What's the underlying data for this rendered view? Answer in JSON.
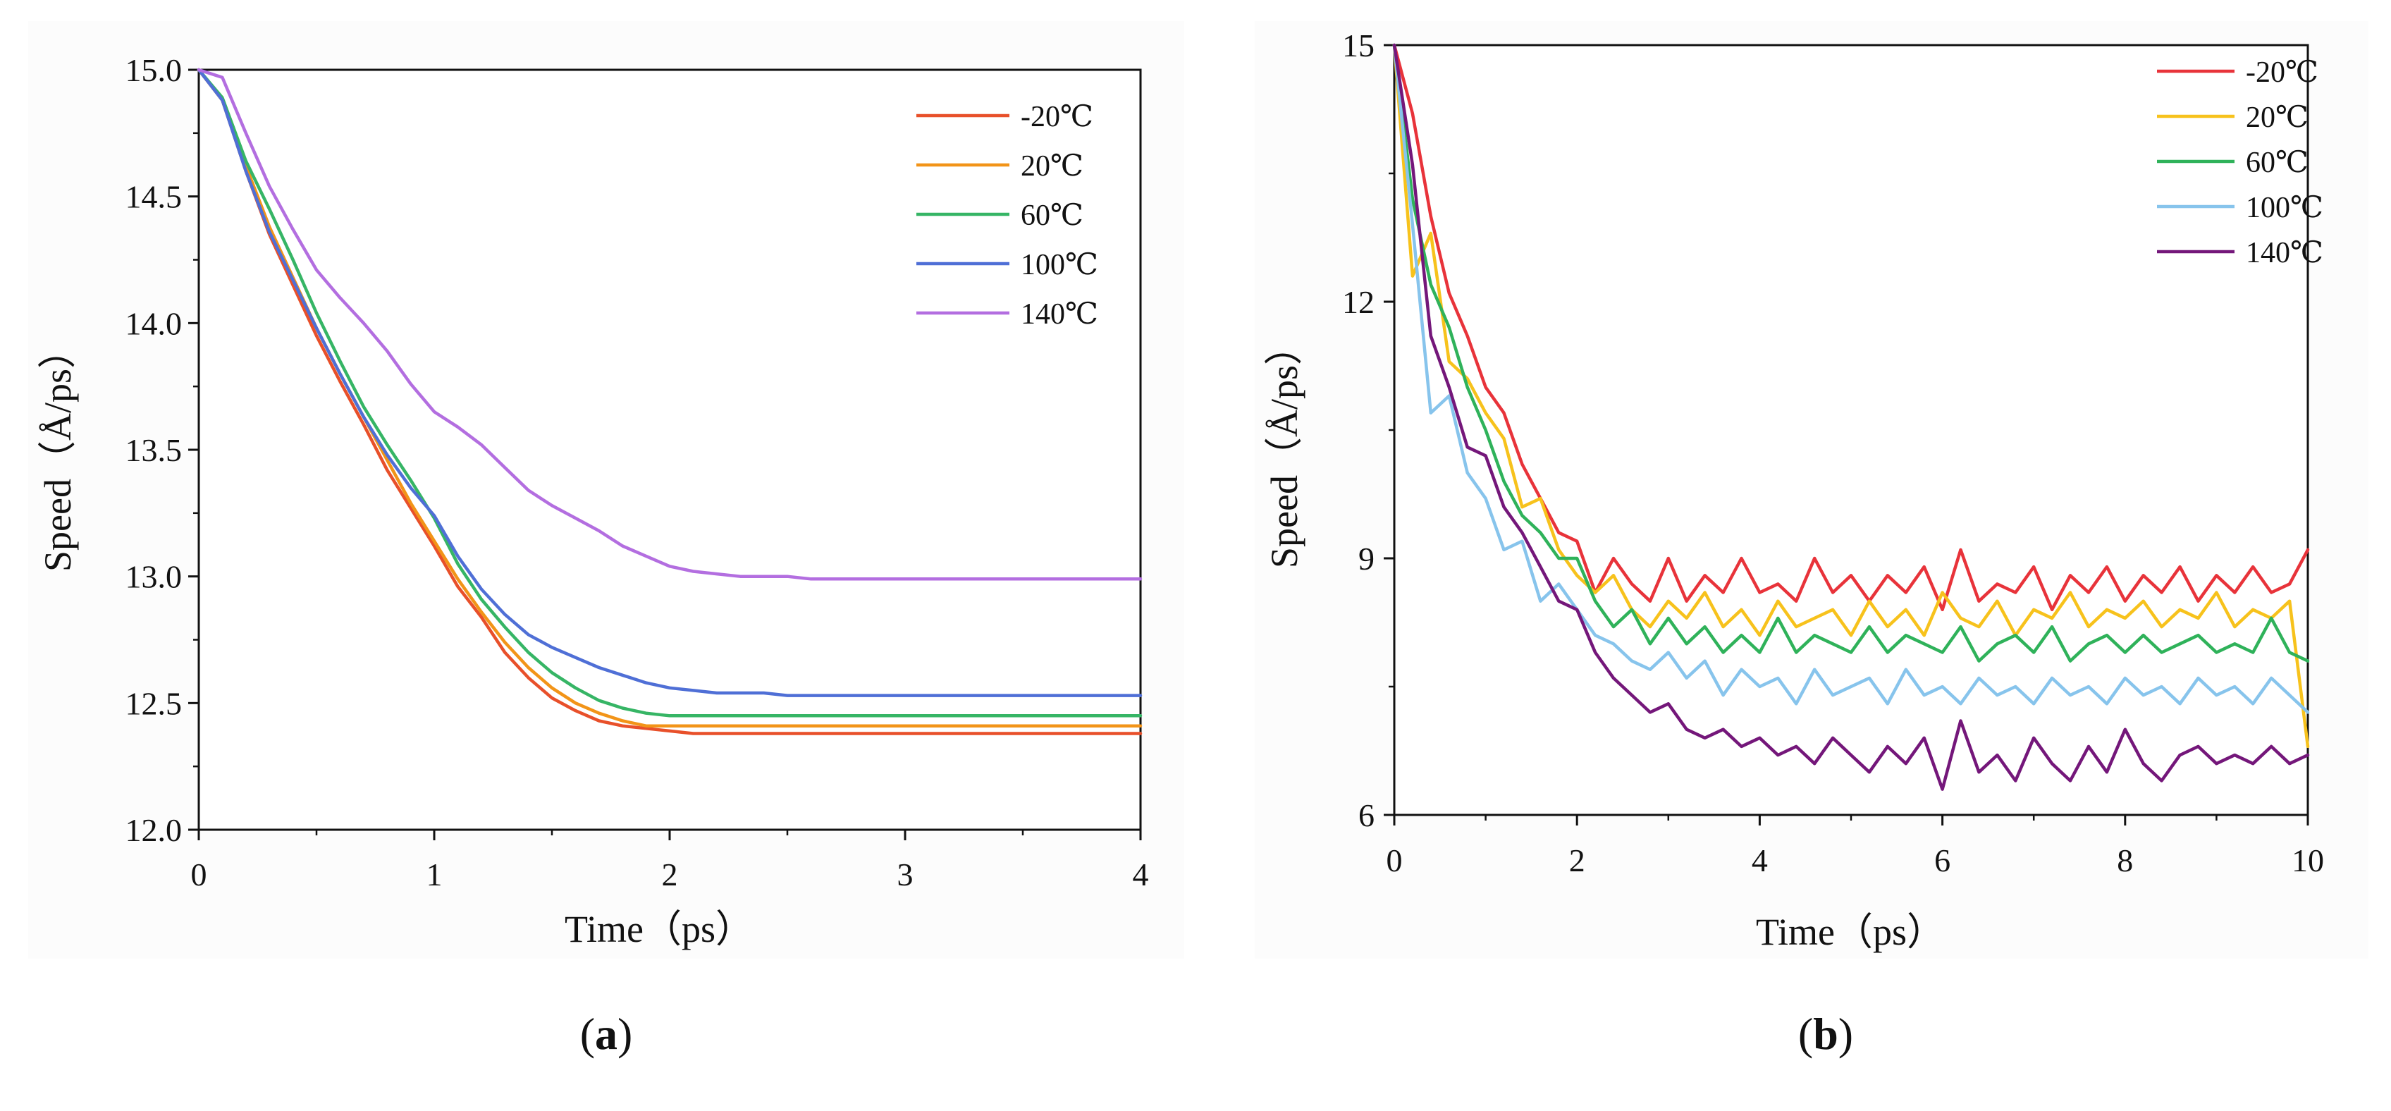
{
  "chart_data": [
    {
      "type": "line",
      "panel_label": "a",
      "title": "",
      "xlabel": "Time（ps）",
      "ylabel": "Speed（Å/ps）",
      "xlim": [
        0,
        4
      ],
      "ylim": [
        12.0,
        15.0
      ],
      "xticks": [
        0,
        1,
        2,
        3,
        4
      ],
      "yticks": [
        12.0,
        12.5,
        13.0,
        13.5,
        14.0,
        14.5,
        15.0
      ],
      "xtick_labels": [
        "0",
        "1",
        "2",
        "3",
        "4"
      ],
      "ytick_labels": [
        "12.0",
        "12.5",
        "13.0",
        "13.5",
        "14.0",
        "14.5",
        "15.0"
      ],
      "legend_position": "top-right",
      "grid": false,
      "x": [
        0,
        0.1,
        0.2,
        0.3,
        0.4,
        0.5,
        0.6,
        0.7,
        0.8,
        0.9,
        1.0,
        1.1,
        1.2,
        1.3,
        1.4,
        1.5,
        1.6,
        1.7,
        1.8,
        1.9,
        2.0,
        2.1,
        2.2,
        2.3,
        2.4,
        2.5,
        2.6,
        2.7,
        2.8,
        2.9,
        3.0,
        3.1,
        3.2,
        3.3,
        3.4,
        3.5,
        3.6,
        3.7,
        3.8,
        3.9,
        4.0
      ],
      "series": [
        {
          "name": "-20℃",
          "color": "#e8502a",
          "values": [
            15.0,
            14.88,
            14.6,
            14.35,
            14.15,
            13.95,
            13.77,
            13.6,
            13.42,
            13.27,
            13.12,
            12.96,
            12.84,
            12.7,
            12.6,
            12.52,
            12.47,
            12.43,
            12.41,
            12.4,
            12.39,
            12.38,
            12.38,
            12.38,
            12.38,
            12.38,
            12.38,
            12.38,
            12.38,
            12.38,
            12.38,
            12.38,
            12.38,
            12.38,
            12.38,
            12.38,
            12.38,
            12.38,
            12.38,
            12.38,
            12.38
          ]
        },
        {
          "name": "20℃",
          "color": "#f29418",
          "values": [
            15.0,
            14.88,
            14.62,
            14.38,
            14.18,
            13.98,
            13.8,
            13.63,
            13.46,
            13.29,
            13.14,
            12.99,
            12.86,
            12.74,
            12.64,
            12.56,
            12.5,
            12.46,
            12.43,
            12.41,
            12.41,
            12.41,
            12.41,
            12.41,
            12.41,
            12.41,
            12.41,
            12.41,
            12.41,
            12.41,
            12.41,
            12.41,
            12.41,
            12.41,
            12.41,
            12.41,
            12.41,
            12.41,
            12.41,
            12.41,
            12.41
          ]
        },
        {
          "name": "60℃",
          "color": "#36b565",
          "values": [
            15.0,
            14.89,
            14.64,
            14.45,
            14.25,
            14.04,
            13.85,
            13.67,
            13.52,
            13.38,
            13.23,
            13.05,
            12.91,
            12.8,
            12.7,
            12.62,
            12.56,
            12.51,
            12.48,
            12.46,
            12.45,
            12.45,
            12.45,
            12.45,
            12.45,
            12.45,
            12.45,
            12.45,
            12.45,
            12.45,
            12.45,
            12.45,
            12.45,
            12.45,
            12.45,
            12.45,
            12.45,
            12.45,
            12.45,
            12.45,
            12.45
          ]
        },
        {
          "name": "100℃",
          "color": "#4f6fd6",
          "values": [
            15.0,
            14.88,
            14.6,
            14.36,
            14.17,
            13.98,
            13.8,
            13.63,
            13.48,
            13.35,
            13.24,
            13.08,
            12.95,
            12.85,
            12.77,
            12.72,
            12.68,
            12.64,
            12.61,
            12.58,
            12.56,
            12.55,
            12.54,
            12.54,
            12.54,
            12.53,
            12.53,
            12.53,
            12.53,
            12.53,
            12.53,
            12.53,
            12.53,
            12.53,
            12.53,
            12.53,
            12.53,
            12.53,
            12.53,
            12.53,
            12.53
          ]
        },
        {
          "name": "140℃",
          "color": "#b36ee0",
          "values": [
            15.0,
            14.97,
            14.75,
            14.54,
            14.37,
            14.21,
            14.1,
            14.0,
            13.89,
            13.76,
            13.65,
            13.59,
            13.52,
            13.43,
            13.34,
            13.28,
            13.23,
            13.18,
            13.12,
            13.08,
            13.04,
            13.02,
            13.01,
            13.0,
            13.0,
            13.0,
            12.99,
            12.99,
            12.99,
            12.99,
            12.99,
            12.99,
            12.99,
            12.99,
            12.99,
            12.99,
            12.99,
            12.99,
            12.99,
            12.99,
            12.99
          ]
        }
      ]
    },
    {
      "type": "line",
      "panel_label": "b",
      "title": "",
      "xlabel": "Time（ps）",
      "ylabel": "Speed（Å/ps）",
      "xlim": [
        0,
        10
      ],
      "ylim": [
        6,
        15
      ],
      "xticks": [
        0,
        2,
        4,
        6,
        8,
        10
      ],
      "yticks": [
        6,
        9,
        12,
        15
      ],
      "xtick_labels": [
        "0",
        "2",
        "4",
        "6",
        "8",
        "10"
      ],
      "ytick_labels": [
        "6",
        "9",
        "12",
        "15"
      ],
      "legend_position": "top-right",
      "grid": false,
      "x": [
        0,
        0.2,
        0.4,
        0.6,
        0.8,
        1.0,
        1.2,
        1.4,
        1.6,
        1.8,
        2.0,
        2.2,
        2.4,
        2.6,
        2.8,
        3.0,
        3.2,
        3.4,
        3.6,
        3.8,
        4.0,
        4.2,
        4.4,
        4.6,
        4.8,
        5.0,
        5.2,
        5.4,
        5.6,
        5.8,
        6.0,
        6.2,
        6.4,
        6.6,
        6.8,
        7.0,
        7.2,
        7.4,
        7.6,
        7.8,
        8.0,
        8.2,
        8.4,
        8.6,
        8.8,
        9.0,
        9.2,
        9.4,
        9.6,
        9.8,
        10.0
      ],
      "series": [
        {
          "name": "-20℃",
          "color": "#e8333a",
          "values": [
            15.0,
            14.2,
            13.0,
            12.1,
            11.6,
            11.0,
            10.7,
            10.1,
            9.7,
            9.3,
            9.2,
            8.6,
            9.0,
            8.7,
            8.5,
            9.0,
            8.5,
            8.8,
            8.6,
            9.0,
            8.6,
            8.7,
            8.5,
            9.0,
            8.6,
            8.8,
            8.5,
            8.8,
            8.6,
            8.9,
            8.4,
            9.1,
            8.5,
            8.7,
            8.6,
            8.9,
            8.4,
            8.8,
            8.6,
            8.9,
            8.5,
            8.8,
            8.6,
            8.9,
            8.5,
            8.8,
            8.6,
            8.9,
            8.6,
            8.7,
            9.1
          ]
        },
        {
          "name": "20℃",
          "color": "#f7c21c",
          "values": [
            15.0,
            12.3,
            12.8,
            11.3,
            11.1,
            10.7,
            10.4,
            9.6,
            9.7,
            9.1,
            8.8,
            8.6,
            8.8,
            8.4,
            8.2,
            8.5,
            8.3,
            8.6,
            8.2,
            8.4,
            8.1,
            8.5,
            8.2,
            8.3,
            8.4,
            8.1,
            8.5,
            8.2,
            8.4,
            8.1,
            8.6,
            8.3,
            8.2,
            8.5,
            8.1,
            8.4,
            8.3,
            8.6,
            8.2,
            8.4,
            8.3,
            8.5,
            8.2,
            8.4,
            8.3,
            8.6,
            8.2,
            8.4,
            8.3,
            8.5,
            6.8
          ]
        },
        {
          "name": "60℃",
          "color": "#2fb25a",
          "values": [
            15.0,
            13.2,
            12.2,
            11.7,
            11.0,
            10.5,
            9.9,
            9.5,
            9.3,
            9.0,
            9.0,
            8.5,
            8.2,
            8.4,
            8.0,
            8.3,
            8.0,
            8.2,
            7.9,
            8.1,
            7.9,
            8.3,
            7.9,
            8.1,
            8.0,
            7.9,
            8.2,
            7.9,
            8.1,
            8.0,
            7.9,
            8.2,
            7.8,
            8.0,
            8.1,
            7.9,
            8.2,
            7.8,
            8.0,
            8.1,
            7.9,
            8.1,
            7.9,
            8.0,
            8.1,
            7.9,
            8.0,
            7.9,
            8.3,
            7.9,
            7.8
          ]
        },
        {
          "name": "100℃",
          "color": "#87c4ec",
          "values": [
            15.0,
            12.9,
            10.7,
            10.9,
            10.0,
            9.7,
            9.1,
            9.2,
            8.5,
            8.7,
            8.4,
            8.1,
            8.0,
            7.8,
            7.7,
            7.9,
            7.6,
            7.8,
            7.4,
            7.7,
            7.5,
            7.6,
            7.3,
            7.7,
            7.4,
            7.5,
            7.6,
            7.3,
            7.7,
            7.4,
            7.5,
            7.3,
            7.6,
            7.4,
            7.5,
            7.3,
            7.6,
            7.4,
            7.5,
            7.3,
            7.6,
            7.4,
            7.5,
            7.3,
            7.6,
            7.4,
            7.5,
            7.3,
            7.6,
            7.4,
            7.2
          ]
        },
        {
          "name": "140℃",
          "color": "#74177a",
          "values": [
            15.0,
            13.6,
            11.6,
            11.0,
            10.3,
            10.2,
            9.6,
            9.3,
            8.9,
            8.5,
            8.4,
            7.9,
            7.6,
            7.4,
            7.2,
            7.3,
            7.0,
            6.9,
            7.0,
            6.8,
            6.9,
            6.7,
            6.8,
            6.6,
            6.9,
            6.7,
            6.5,
            6.8,
            6.6,
            6.9,
            6.3,
            7.1,
            6.5,
            6.7,
            6.4,
            6.9,
            6.6,
            6.4,
            6.8,
            6.5,
            7.0,
            6.6,
            6.4,
            6.7,
            6.8,
            6.6,
            6.7,
            6.6,
            6.8,
            6.6,
            6.7
          ]
        }
      ]
    }
  ]
}
